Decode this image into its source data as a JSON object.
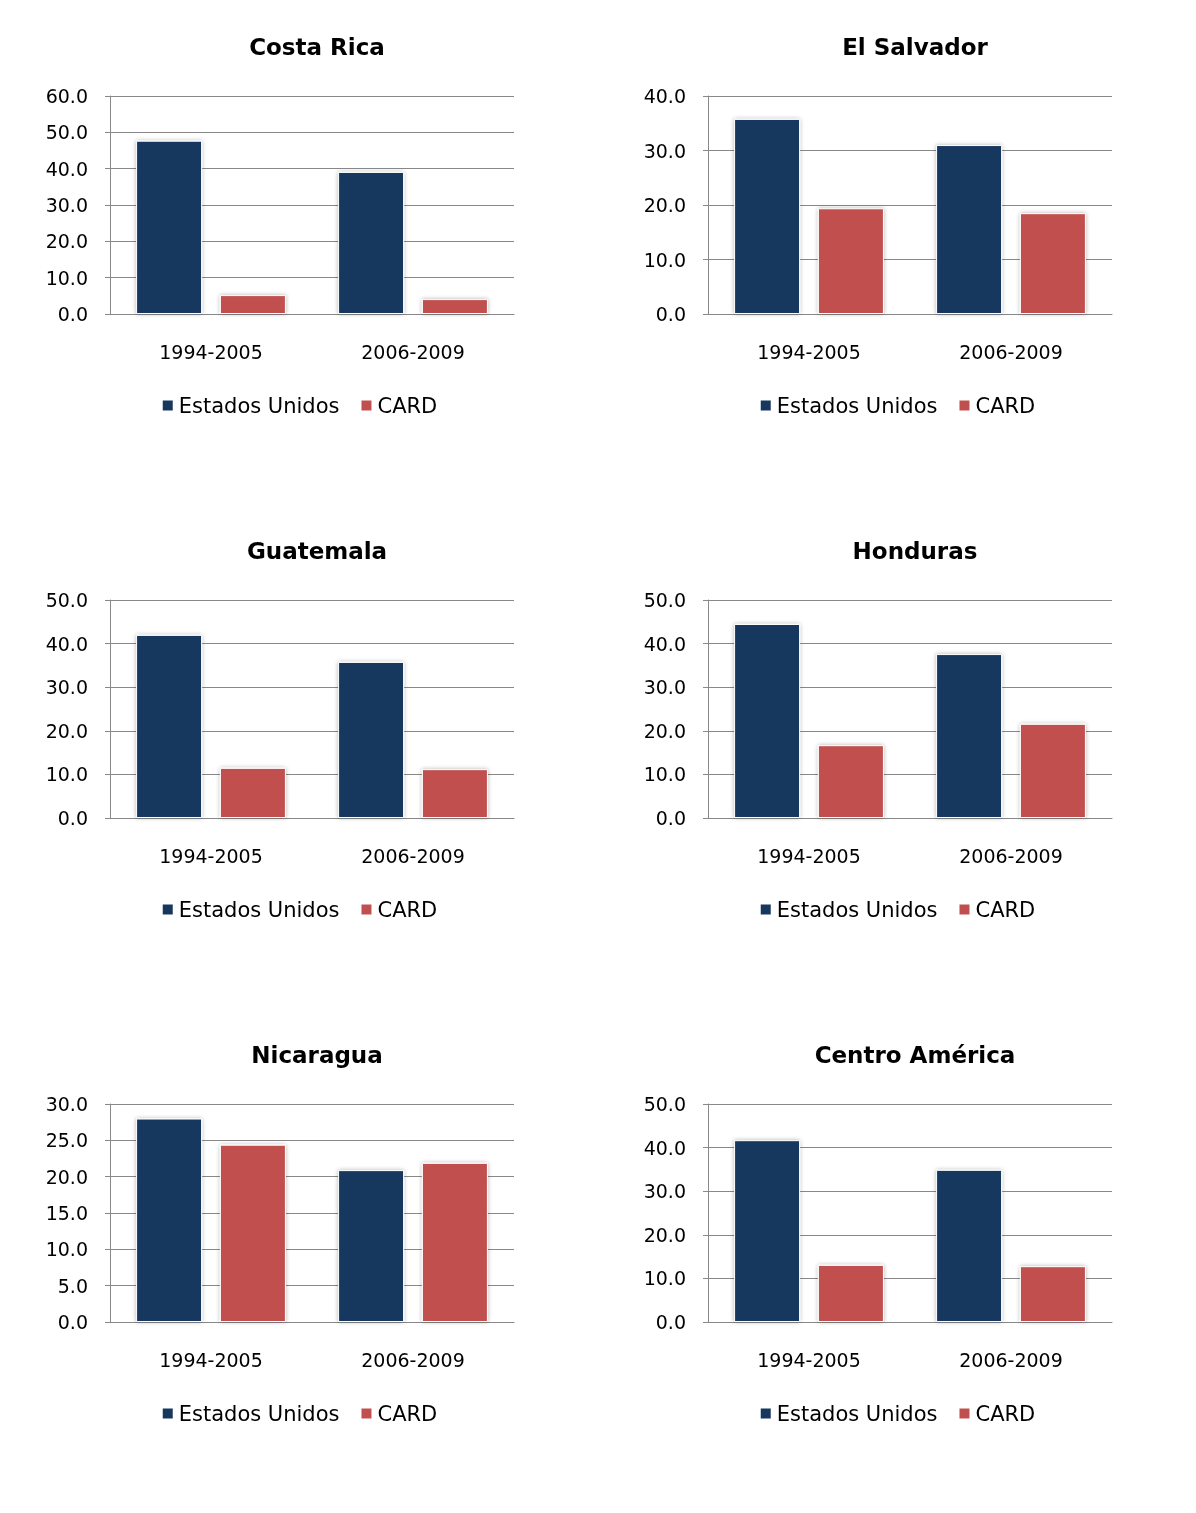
{
  "chart_data": [
    {
      "type": "bar",
      "title": "Costa Rica",
      "categories": [
        "1994-2005",
        "2006-2009"
      ],
      "series": [
        {
          "name": "Estados Unidos",
          "color": "#17375e",
          "values": [
            47.7,
            39.1
          ]
        },
        {
          "name": "CARD",
          "color": "#c0504d",
          "values": [
            5.2,
            4.1
          ]
        }
      ],
      "ylim": [
        0,
        60
      ],
      "yticks": [
        {
          "value": 0,
          "label": "0.0"
        },
        {
          "value": 10,
          "label": "10.0"
        },
        {
          "value": 20,
          "label": "20.0"
        },
        {
          "value": 30,
          "label": "30.0"
        },
        {
          "value": 40,
          "label": "40.0"
        },
        {
          "value": 50,
          "label": "50.0"
        },
        {
          "value": 60,
          "label": "60.0"
        }
      ],
      "grid": "y",
      "legend": "bottom"
    },
    {
      "type": "bar",
      "title": "El Salvador",
      "categories": [
        "1994-2005",
        "2006-2009"
      ],
      "series": [
        {
          "name": "Estados Unidos",
          "color": "#17375e",
          "values": [
            35.8,
            31.0
          ]
        },
        {
          "name": "CARD",
          "color": "#c0504d",
          "values": [
            19.4,
            18.5
          ]
        }
      ],
      "ylim": [
        0,
        40
      ],
      "yticks": [
        {
          "value": 0,
          "label": "0.0"
        },
        {
          "value": 10,
          "label": "10.0"
        },
        {
          "value": 20,
          "label": "20.0"
        },
        {
          "value": 30,
          "label": "30.0"
        },
        {
          "value": 40,
          "label": "40.0"
        }
      ],
      "grid": "y",
      "legend": "bottom"
    },
    {
      "type": "bar",
      "title": "Guatemala",
      "categories": [
        "1994-2005",
        "2006-2009"
      ],
      "series": [
        {
          "name": "Estados Unidos",
          "color": "#17375e",
          "values": [
            42.0,
            35.8
          ]
        },
        {
          "name": "CARD",
          "color": "#c0504d",
          "values": [
            11.5,
            11.2
          ]
        }
      ],
      "ylim": [
        0,
        50
      ],
      "yticks": [
        {
          "value": 0,
          "label": "0.0"
        },
        {
          "value": 10,
          "label": "10.0"
        },
        {
          "value": 20,
          "label": "20.0"
        },
        {
          "value": 30,
          "label": "30.0"
        },
        {
          "value": 40,
          "label": "40.0"
        },
        {
          "value": 50,
          "label": "50.0"
        }
      ],
      "grid": "y",
      "legend": "bottom"
    },
    {
      "type": "bar",
      "title": "Honduras",
      "categories": [
        "1994-2005",
        "2006-2009"
      ],
      "series": [
        {
          "name": "Estados Unidos",
          "color": "#17375e",
          "values": [
            44.5,
            37.6
          ]
        },
        {
          "name": "CARD",
          "color": "#c0504d",
          "values": [
            16.7,
            21.6
          ]
        }
      ],
      "ylim": [
        0,
        50
      ],
      "yticks": [
        {
          "value": 0,
          "label": "0.0"
        },
        {
          "value": 10,
          "label": "10.0"
        },
        {
          "value": 20,
          "label": "20.0"
        },
        {
          "value": 30,
          "label": "30.0"
        },
        {
          "value": 40,
          "label": "40.0"
        },
        {
          "value": 50,
          "label": "50.0"
        }
      ],
      "grid": "y",
      "legend": "bottom"
    },
    {
      "type": "bar",
      "title": "Nicaragua",
      "categories": [
        "1994-2005",
        "2006-2009"
      ],
      "series": [
        {
          "name": "Estados Unidos",
          "color": "#17375e",
          "values": [
            28.0,
            20.9
          ]
        },
        {
          "name": "CARD",
          "color": "#c0504d",
          "values": [
            24.4,
            21.9
          ]
        }
      ],
      "ylim": [
        0,
        30
      ],
      "yticks": [
        {
          "value": 0,
          "label": "0.0"
        },
        {
          "value": 5,
          "label": "5.0"
        },
        {
          "value": 10,
          "label": "10.0"
        },
        {
          "value": 15,
          "label": "15.0"
        },
        {
          "value": 20,
          "label": "20.0"
        },
        {
          "value": 25,
          "label": "25.0"
        },
        {
          "value": 30,
          "label": "30.0"
        }
      ],
      "grid": "y",
      "legend": "bottom"
    },
    {
      "type": "bar",
      "title": "Centro América",
      "categories": [
        "1994-2005",
        "2006-2009"
      ],
      "series": [
        {
          "name": "Estados Unidos",
          "color": "#17375e",
          "values": [
            41.7,
            34.9
          ]
        },
        {
          "name": "CARD",
          "color": "#c0504d",
          "values": [
            13.1,
            12.8
          ]
        }
      ],
      "ylim": [
        0,
        50
      ],
      "yticks": [
        {
          "value": 0,
          "label": "0.0"
        },
        {
          "value": 10,
          "label": "10.0"
        },
        {
          "value": 20,
          "label": "20.0"
        },
        {
          "value": 30,
          "label": "30.0"
        },
        {
          "value": 40,
          "label": "40.0"
        },
        {
          "value": 50,
          "label": "50.0"
        }
      ],
      "grid": "y",
      "legend": "bottom"
    }
  ]
}
